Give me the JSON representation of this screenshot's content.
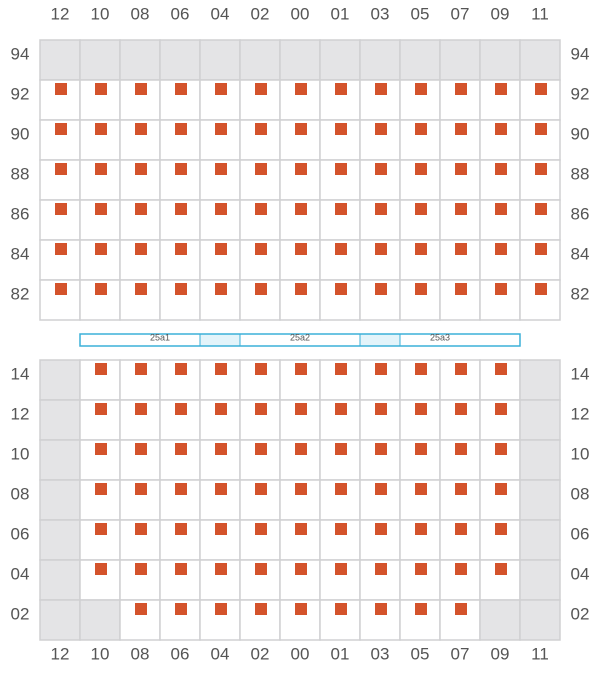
{
  "columns": [
    "12",
    "10",
    "08",
    "06",
    "04",
    "02",
    "00",
    "01",
    "03",
    "05",
    "07",
    "09",
    "11"
  ],
  "upper_rows": [
    "94",
    "92",
    "90",
    "88",
    "86",
    "84",
    "82"
  ],
  "lower_rows": [
    "14",
    "12",
    "10",
    "08",
    "06",
    "04",
    "02"
  ],
  "strip": [
    "25a1",
    "25a2",
    "25a3"
  ]
}
